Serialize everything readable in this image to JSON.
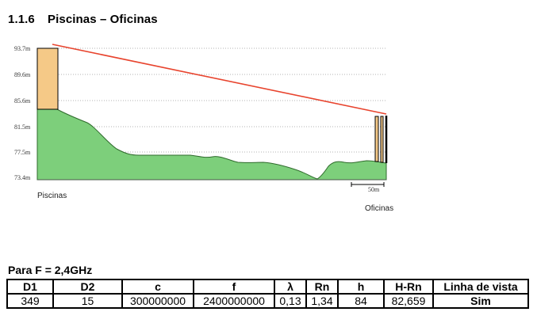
{
  "section": {
    "number": "1.1.6",
    "title": "Piscinas – Oficinas"
  },
  "profile": {
    "y_ticks": [
      "93.7m",
      "89.6m",
      "85.6m",
      "81.5m",
      "77.5m",
      "73.4m"
    ],
    "start_label": "Piscinas",
    "end_label": "Oficinas",
    "scale_label": "50m",
    "colors": {
      "terrain": "#7dcf7b",
      "tower": "#f5c987",
      "los": "#e8442e"
    }
  },
  "frequency_label": "Para F = 2,4GHz",
  "table": {
    "headers": [
      "D1",
      "D2",
      "c",
      "f",
      "λ",
      "Rn",
      "h",
      "H-Rn",
      "Linha de vista"
    ],
    "row": [
      "349",
      "15",
      "300000000",
      "2400000000",
      "0,13",
      "1,34",
      "84",
      "82,659",
      "Sim"
    ]
  }
}
